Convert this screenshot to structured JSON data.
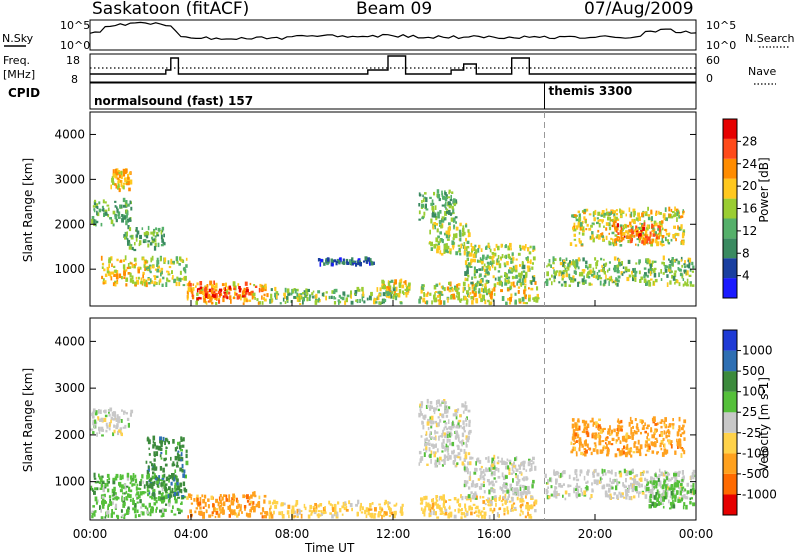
{
  "header": {
    "radar": "Saskatoon (fitACF)",
    "beam": "Beam 09",
    "date": "07/Aug/2009"
  },
  "sky_panel": {
    "left_label": "N.Sky",
    "left_ticks": [
      "10^5",
      "10^0"
    ],
    "right_ticks": [
      "10^5",
      "10^0"
    ],
    "right_label": "N.Search"
  },
  "freq_panel": {
    "left_label_1": "Freq.",
    "left_label_2": "[MHz]",
    "left_ticks": [
      "18",
      "8"
    ],
    "right_ticks": [
      "60",
      "0"
    ],
    "right_label": "Nave"
  },
  "cpid_panel": {
    "label": "CPID",
    "segments": [
      {
        "name": "normalsound (fast) 157",
        "start_hour": 0
      },
      {
        "name": "themis 3300",
        "start_hour": 18
      }
    ]
  },
  "colors": {
    "power": [
      "#1a1aff",
      "#1a3fa0",
      "#3a8a60",
      "#55b06a",
      "#9acd32",
      "#ffc81e",
      "#ff8c00",
      "#ff4a1a",
      "#e60000"
    ],
    "velocity": [
      "#1f3bd6",
      "#2e6fb3",
      "#3c8a3c",
      "#55c03a",
      "#c8c8c8",
      "#ffd24a",
      "#ffa11e",
      "#ff6a00",
      "#e60000"
    ],
    "line": "#000000"
  },
  "chart_data": [
    {
      "type": "heatmap",
      "quantity": "Power",
      "xlabel": "Time UT",
      "ylabel": "Slant Range [km]",
      "x_ticks": [
        "00:00",
        "04:00",
        "08:00",
        "12:00",
        "16:00",
        "20:00",
        "00:00"
      ],
      "xlim_hours": [
        0,
        24
      ],
      "y_ticks": [
        "1000",
        "2000",
        "3000",
        "4000"
      ],
      "ylim_km": [
        180,
        4500
      ],
      "colorbar": {
        "label": "Power [dB]",
        "tick_labels": [
          "4",
          "8",
          "12",
          "16",
          "20",
          "24",
          "28"
        ],
        "range": [
          0,
          32
        ]
      },
      "regions": [
        {
          "t": [
            0.0,
            1.6
          ],
          "r": [
            1950,
            2500
          ],
          "level": 12
        },
        {
          "t": [
            0.8,
            1.6
          ],
          "r": [
            2700,
            3150
          ],
          "level": 20
        },
        {
          "t": [
            0.4,
            2.2
          ],
          "r": [
            600,
            1200
          ],
          "level": 20
        },
        {
          "t": [
            1.3,
            2.9
          ],
          "r": [
            1400,
            1900
          ],
          "level": 12
        },
        {
          "t": [
            2.2,
            3.8
          ],
          "r": [
            600,
            1200
          ],
          "level": 16
        },
        {
          "t": [
            3.8,
            7.0
          ],
          "r": [
            200,
            650
          ],
          "level": 22
        },
        {
          "t": [
            4.2,
            6.2
          ],
          "r": [
            300,
            560
          ],
          "level": 28
        },
        {
          "t": [
            7.0,
            12.4
          ],
          "r": [
            200,
            520
          ],
          "level": 14
        },
        {
          "t": [
            9.0,
            11.2
          ],
          "r": [
            1050,
            1180
          ],
          "level": 6
        },
        {
          "t": [
            11.5,
            12.6
          ],
          "r": [
            350,
            700
          ],
          "level": 18
        },
        {
          "t": [
            13.0,
            17.7
          ],
          "r": [
            200,
            650
          ],
          "level": 18
        },
        {
          "t": [
            13.0,
            14.5
          ],
          "r": [
            2000,
            2700
          ],
          "level": 12
        },
        {
          "t": [
            13.4,
            15.0
          ],
          "r": [
            1300,
            2000
          ],
          "level": 16
        },
        {
          "t": [
            14.8,
            17.6
          ],
          "r": [
            1000,
            1500
          ],
          "level": 16
        },
        {
          "t": [
            14.8,
            17.6
          ],
          "r": [
            600,
            1000
          ],
          "level": 14
        },
        {
          "t": [
            18.0,
            23.9
          ],
          "r": [
            600,
            1200
          ],
          "level": 14
        },
        {
          "t": [
            19.0,
            23.5
          ],
          "r": [
            1500,
            2300
          ],
          "level": 18
        },
        {
          "t": [
            20.5,
            22.6
          ],
          "r": [
            1550,
            1950
          ],
          "level": 26
        }
      ]
    },
    {
      "type": "heatmap",
      "quantity": "Velocity",
      "xlabel": "Time UT",
      "ylabel": "Slant Range [km]",
      "x_ticks": [
        "00:00",
        "04:00",
        "08:00",
        "12:00",
        "16:00",
        "20:00",
        "00:00"
      ],
      "xlim_hours": [
        0,
        24
      ],
      "y_ticks": [
        "1000",
        "2000",
        "3000",
        "4000"
      ],
      "ylim_km": [
        180,
        4500
      ],
      "colorbar": {
        "label": "Velocity [m s-1]",
        "tick_labels": [
          "1000",
          "500",
          "100",
          "25",
          "-25",
          "-100",
          "-500",
          "-1000"
        ]
      },
      "regions": [
        {
          "t": [
            0.0,
            1.6
          ],
          "r": [
            1950,
            2500
          ],
          "cls": 4
        },
        {
          "t": [
            0.0,
            3.6
          ],
          "r": [
            200,
            1100
          ],
          "cls": 3
        },
        {
          "t": [
            2.2,
            3.8
          ],
          "r": [
            600,
            1900
          ],
          "cls": 2
        },
        {
          "t": [
            3.8,
            7.0
          ],
          "r": [
            200,
            700
          ],
          "cls": 6
        },
        {
          "t": [
            7.0,
            12.4
          ],
          "r": [
            200,
            520
          ],
          "cls": 5
        },
        {
          "t": [
            13.0,
            17.7
          ],
          "r": [
            200,
            650
          ],
          "cls": 5
        },
        {
          "t": [
            13.0,
            15.0
          ],
          "r": [
            1300,
            2700
          ],
          "cls": 4
        },
        {
          "t": [
            14.8,
            17.6
          ],
          "r": [
            600,
            1500
          ],
          "cls": 4
        },
        {
          "t": [
            18.0,
            23.9
          ],
          "r": [
            600,
            1200
          ],
          "cls": 4
        },
        {
          "t": [
            19.0,
            23.5
          ],
          "r": [
            1500,
            2300
          ],
          "cls": 6
        },
        {
          "t": [
            22.0,
            23.9
          ],
          "r": [
            400,
            1000
          ],
          "cls": 3
        }
      ]
    }
  ]
}
